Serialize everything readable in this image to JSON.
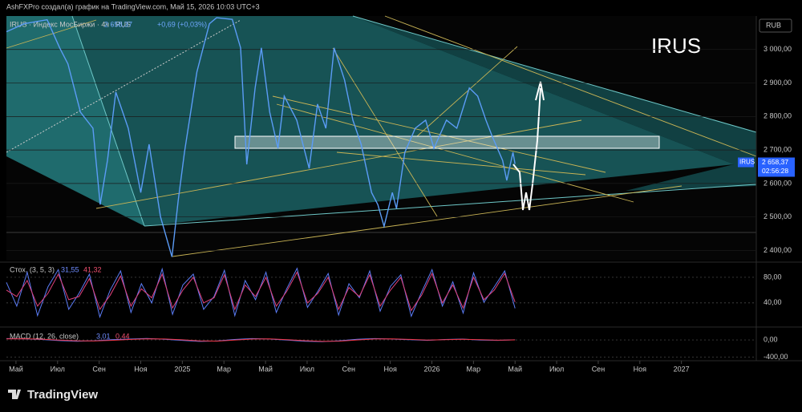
{
  "header": {
    "text": "AshFXPro создал(а) график на TradingView.com, Май 15, 2026 10:03 UTC+3"
  },
  "footer": {
    "brand": "TradingView"
  },
  "chart_data": [
    {
      "type": "line",
      "title": "IRUS",
      "legend": "IRUS · Индекс МосБиржи · 4ч · RUS",
      "last_label": "2 658,37",
      "change": "+0,69 (+0,03%)",
      "currency": "RUB",
      "price_tag": {
        "symbol": "IRUS",
        "price": "2 658,37",
        "countdown": "02:56:28"
      },
      "x": [
        -0.46,
        0.4,
        1.5,
        2.1,
        2.5,
        3.1,
        3.7,
        4.05,
        4.4,
        4.8,
        5.4,
        6.0,
        6.4,
        6.95,
        7.5,
        7.8,
        8.1,
        8.7,
        9.3,
        9.65,
        10.4,
        10.8,
        11.1,
        11.5,
        11.8,
        12.2,
        12.6,
        12.9,
        13.5,
        14.1,
        14.5,
        14.9,
        15.3,
        15.8,
        16.2,
        16.6,
        17.1,
        17.4,
        17.7,
        18.1,
        18.3,
        18.7,
        19.2,
        19.7,
        20.1,
        20.7,
        21.2,
        21.8,
        22.2,
        22.6,
        22.9,
        23.4,
        23.6,
        23.9,
        24.0
      ],
      "series": [
        {
          "name": "IRUS",
          "color": "#5b9cf6",
          "values": [
            3053,
            3077,
            3089,
            3005,
            2957,
            2813,
            2765,
            2537,
            2669,
            2873,
            2765,
            2573,
            2717,
            2501,
            2381,
            2549,
            2693,
            2933,
            3077,
            3095,
            3090,
            3005,
            2657,
            2885,
            3005,
            2813,
            2705,
            2861,
            2789,
            2645,
            2837,
            2765,
            3005,
            2909,
            2789,
            2717,
            2573,
            2537,
            2472,
            2573,
            2525,
            2693,
            2765,
            2789,
            2705,
            2789,
            2765,
            2885,
            2861,
            2789,
            2741,
            2669,
            2609,
            2693,
            2658.37
          ]
        }
      ],
      "xlim": [
        -0.46,
        35.6
      ],
      "xticks": [
        {
          "value": 0,
          "label": "Май"
        },
        {
          "value": 2,
          "label": "Июл"
        },
        {
          "value": 4,
          "label": "Сен"
        },
        {
          "value": 6,
          "label": "Ноя"
        },
        {
          "value": 8,
          "label": "2025"
        },
        {
          "value": 10,
          "label": "Мар"
        },
        {
          "value": 12,
          "label": "Май"
        },
        {
          "value": 14,
          "label": "Июл"
        },
        {
          "value": 16,
          "label": "Сен"
        },
        {
          "value": 18,
          "label": "Ноя"
        },
        {
          "value": 20,
          "label": "2026"
        },
        {
          "value": 22,
          "label": "Мар"
        },
        {
          "value": 24,
          "label": "Май"
        },
        {
          "value": 26,
          "label": "Июл"
        },
        {
          "value": 28,
          "label": "Сен"
        },
        {
          "value": 30,
          "label": "Ноя"
        },
        {
          "value": 32,
          "label": "2027"
        }
      ],
      "ylim": [
        2370,
        3100
      ],
      "yticks": [
        {
          "value": 2400,
          "label": "2 400,00"
        },
        {
          "value": 2500,
          "label": "2 500,00"
        },
        {
          "value": 2600,
          "label": "2 600,00"
        },
        {
          "value": 2700,
          "label": "2 700,00"
        },
        {
          "value": 2800,
          "label": "2 800,00"
        },
        {
          "value": 2900,
          "label": "2 900,00"
        },
        {
          "value": 3000,
          "label": "3 000,00"
        }
      ]
    },
    {
      "type": "line",
      "title": "Стох. (3, 5, 3)",
      "ylim": [
        6,
        100
      ],
      "yticks": [
        {
          "value": 40,
          "label": "40,00"
        },
        {
          "value": 80,
          "label": "80,00"
        }
      ],
      "series": [
        {
          "color": "#5b7cf6",
          "last_label": "31,55",
          "values": [
            72,
            35,
            88,
            20,
            65,
            92,
            30,
            55,
            85,
            18,
            60,
            90,
            25,
            70,
            40,
            93,
            22,
            68,
            85,
            30,
            50,
            91,
            20,
            75,
            45,
            88,
            25,
            62,
            94,
            33,
            58,
            86,
            21,
            70,
            48,
            90,
            27,
            66,
            84,
            19,
            57,
            92,
            35,
            73,
            24,
            87,
            41,
            65,
            90,
            31.55
          ]
        },
        {
          "color": "#e0407a",
          "last_label": "41,32",
          "values": [
            60,
            50,
            75,
            35,
            55,
            85,
            45,
            50,
            78,
            30,
            52,
            82,
            35,
            62,
            48,
            85,
            32,
            60,
            80,
            40,
            48,
            84,
            30,
            68,
            50,
            80,
            35,
            58,
            88,
            40,
            55,
            80,
            30,
            64,
            50,
            84,
            35,
            60,
            80,
            28,
            52,
            86,
            40,
            68,
            32,
            80,
            45,
            60,
            86,
            41.32
          ]
        }
      ]
    },
    {
      "type": "line",
      "title": "MACD (12, 26, close)",
      "ylim": [
        -480,
        260
      ],
      "yticks": [
        {
          "value": -400,
          "label": "-400,00"
        },
        {
          "value": 0,
          "label": "0,00"
        }
      ],
      "series": [
        {
          "color": "#5b7cf6",
          "last_label": "3,01",
          "values": [
            30,
            25,
            10,
            -15,
            -30,
            -20,
            5,
            20,
            35,
            15,
            -10,
            -35,
            -25,
            10,
            30,
            20,
            -5,
            -30,
            -40,
            -20,
            15,
            30,
            20,
            5,
            -10,
            10,
            20,
            -5,
            -10,
            3.01
          ]
        },
        {
          "color": "#f23645",
          "last_label": "0,44",
          "values": [
            25,
            27,
            18,
            -2,
            -20,
            -24,
            -10,
            10,
            25,
            22,
            2,
            -22,
            -28,
            -5,
            20,
            24,
            5,
            -18,
            -34,
            -28,
            0,
            22,
            24,
            12,
            -2,
            4,
            14,
            5,
            -6,
            0.44
          ]
        }
      ]
    }
  ]
}
